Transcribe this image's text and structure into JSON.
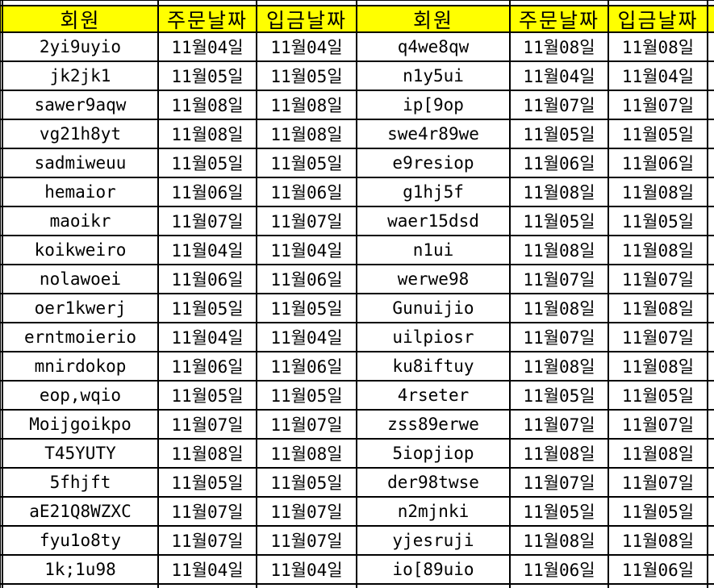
{
  "colors": {
    "header_bg": "#ffff00",
    "border": "#000000",
    "text": "#000000"
  },
  "header": {
    "member": "회원",
    "order_date": "주문날짜",
    "deposit_date": "입금날짜"
  },
  "rows": [
    {
      "left": {
        "member": "2yi9uyio",
        "order_date": "11월04일",
        "deposit_date": "11월04일"
      },
      "right": {
        "member": "q4we8qw",
        "order_date": "11월08일",
        "deposit_date": "11월08일"
      }
    },
    {
      "left": {
        "member": "jk2jk1",
        "order_date": "11월05일",
        "deposit_date": "11월05일"
      },
      "right": {
        "member": "n1y5ui",
        "order_date": "11월04일",
        "deposit_date": "11월04일"
      }
    },
    {
      "left": {
        "member": "sawer9aqw",
        "order_date": "11월08일",
        "deposit_date": "11월08일"
      },
      "right": {
        "member": "ip[9op",
        "order_date": "11월07일",
        "deposit_date": "11월07일"
      }
    },
    {
      "left": {
        "member": "vg21h8yt",
        "order_date": "11월08일",
        "deposit_date": "11월08일"
      },
      "right": {
        "member": "swe4r89we",
        "order_date": "11월05일",
        "deposit_date": "11월05일"
      }
    },
    {
      "left": {
        "member": "sadmiweuu",
        "order_date": "11월05일",
        "deposit_date": "11월05일"
      },
      "right": {
        "member": "e9resiop",
        "order_date": "11월06일",
        "deposit_date": "11월06일"
      }
    },
    {
      "left": {
        "member": "hemaior",
        "order_date": "11월06일",
        "deposit_date": "11월06일"
      },
      "right": {
        "member": "g1hj5f",
        "order_date": "11월08일",
        "deposit_date": "11월08일"
      }
    },
    {
      "left": {
        "member": "maoikr",
        "order_date": "11월07일",
        "deposit_date": "11월07일"
      },
      "right": {
        "member": "waer15dsd",
        "order_date": "11월05일",
        "deposit_date": "11월05일"
      }
    },
    {
      "left": {
        "member": "koikweiro",
        "order_date": "11월04일",
        "deposit_date": "11월04일"
      },
      "right": {
        "member": "n1ui",
        "order_date": "11월08일",
        "deposit_date": "11월08일"
      }
    },
    {
      "left": {
        "member": "nolawoei",
        "order_date": "11월06일",
        "deposit_date": "11월06일"
      },
      "right": {
        "member": "werwe98",
        "order_date": "11월07일",
        "deposit_date": "11월07일"
      }
    },
    {
      "left": {
        "member": "oer1kwerj",
        "order_date": "11월05일",
        "deposit_date": "11월05일"
      },
      "right": {
        "member": "Gunuijio",
        "order_date": "11월08일",
        "deposit_date": "11월08일"
      }
    },
    {
      "left": {
        "member": "erntmoierio",
        "order_date": "11월04일",
        "deposit_date": "11월04일"
      },
      "right": {
        "member": "uilpiosr",
        "order_date": "11월07일",
        "deposit_date": "11월07일"
      }
    },
    {
      "left": {
        "member": "mnirdokop",
        "order_date": "11월06일",
        "deposit_date": "11월06일"
      },
      "right": {
        "member": "ku8iftuy",
        "order_date": "11월08일",
        "deposit_date": "11월08일"
      }
    },
    {
      "left": {
        "member": "eop,wqio",
        "order_date": "11월05일",
        "deposit_date": "11월05일"
      },
      "right": {
        "member": "4rseter",
        "order_date": "11월05일",
        "deposit_date": "11월05일"
      }
    },
    {
      "left": {
        "member": "Moijgoikpo",
        "order_date": "11월07일",
        "deposit_date": "11월07일"
      },
      "right": {
        "member": "zss89erwe",
        "order_date": "11월07일",
        "deposit_date": "11월07일"
      }
    },
    {
      "left": {
        "member": "T45YUTY",
        "order_date": "11월08일",
        "deposit_date": "11월08일"
      },
      "right": {
        "member": "5iopjiop",
        "order_date": "11월08일",
        "deposit_date": "11월08일"
      }
    },
    {
      "left": {
        "member": "5fhjft",
        "order_date": "11월05일",
        "deposit_date": "11월05일"
      },
      "right": {
        "member": "der98twse",
        "order_date": "11월07일",
        "deposit_date": "11월07일"
      }
    },
    {
      "left": {
        "member": "aE21Q8WZXC",
        "order_date": "11월07일",
        "deposit_date": "11월07일"
      },
      "right": {
        "member": "n2mjnki",
        "order_date": "11월05일",
        "deposit_date": "11월05일"
      }
    },
    {
      "left": {
        "member": "fyu1o8ty",
        "order_date": "11월07일",
        "deposit_date": "11월07일"
      },
      "right": {
        "member": "yjesruji",
        "order_date": "11월08일",
        "deposit_date": "11월08일"
      }
    },
    {
      "left": {
        "member": "1k;1u98",
        "order_date": "11월04일",
        "deposit_date": "11월04일"
      },
      "right": {
        "member": "io[89uio",
        "order_date": "11월06일",
        "deposit_date": "11월06일"
      }
    }
  ]
}
